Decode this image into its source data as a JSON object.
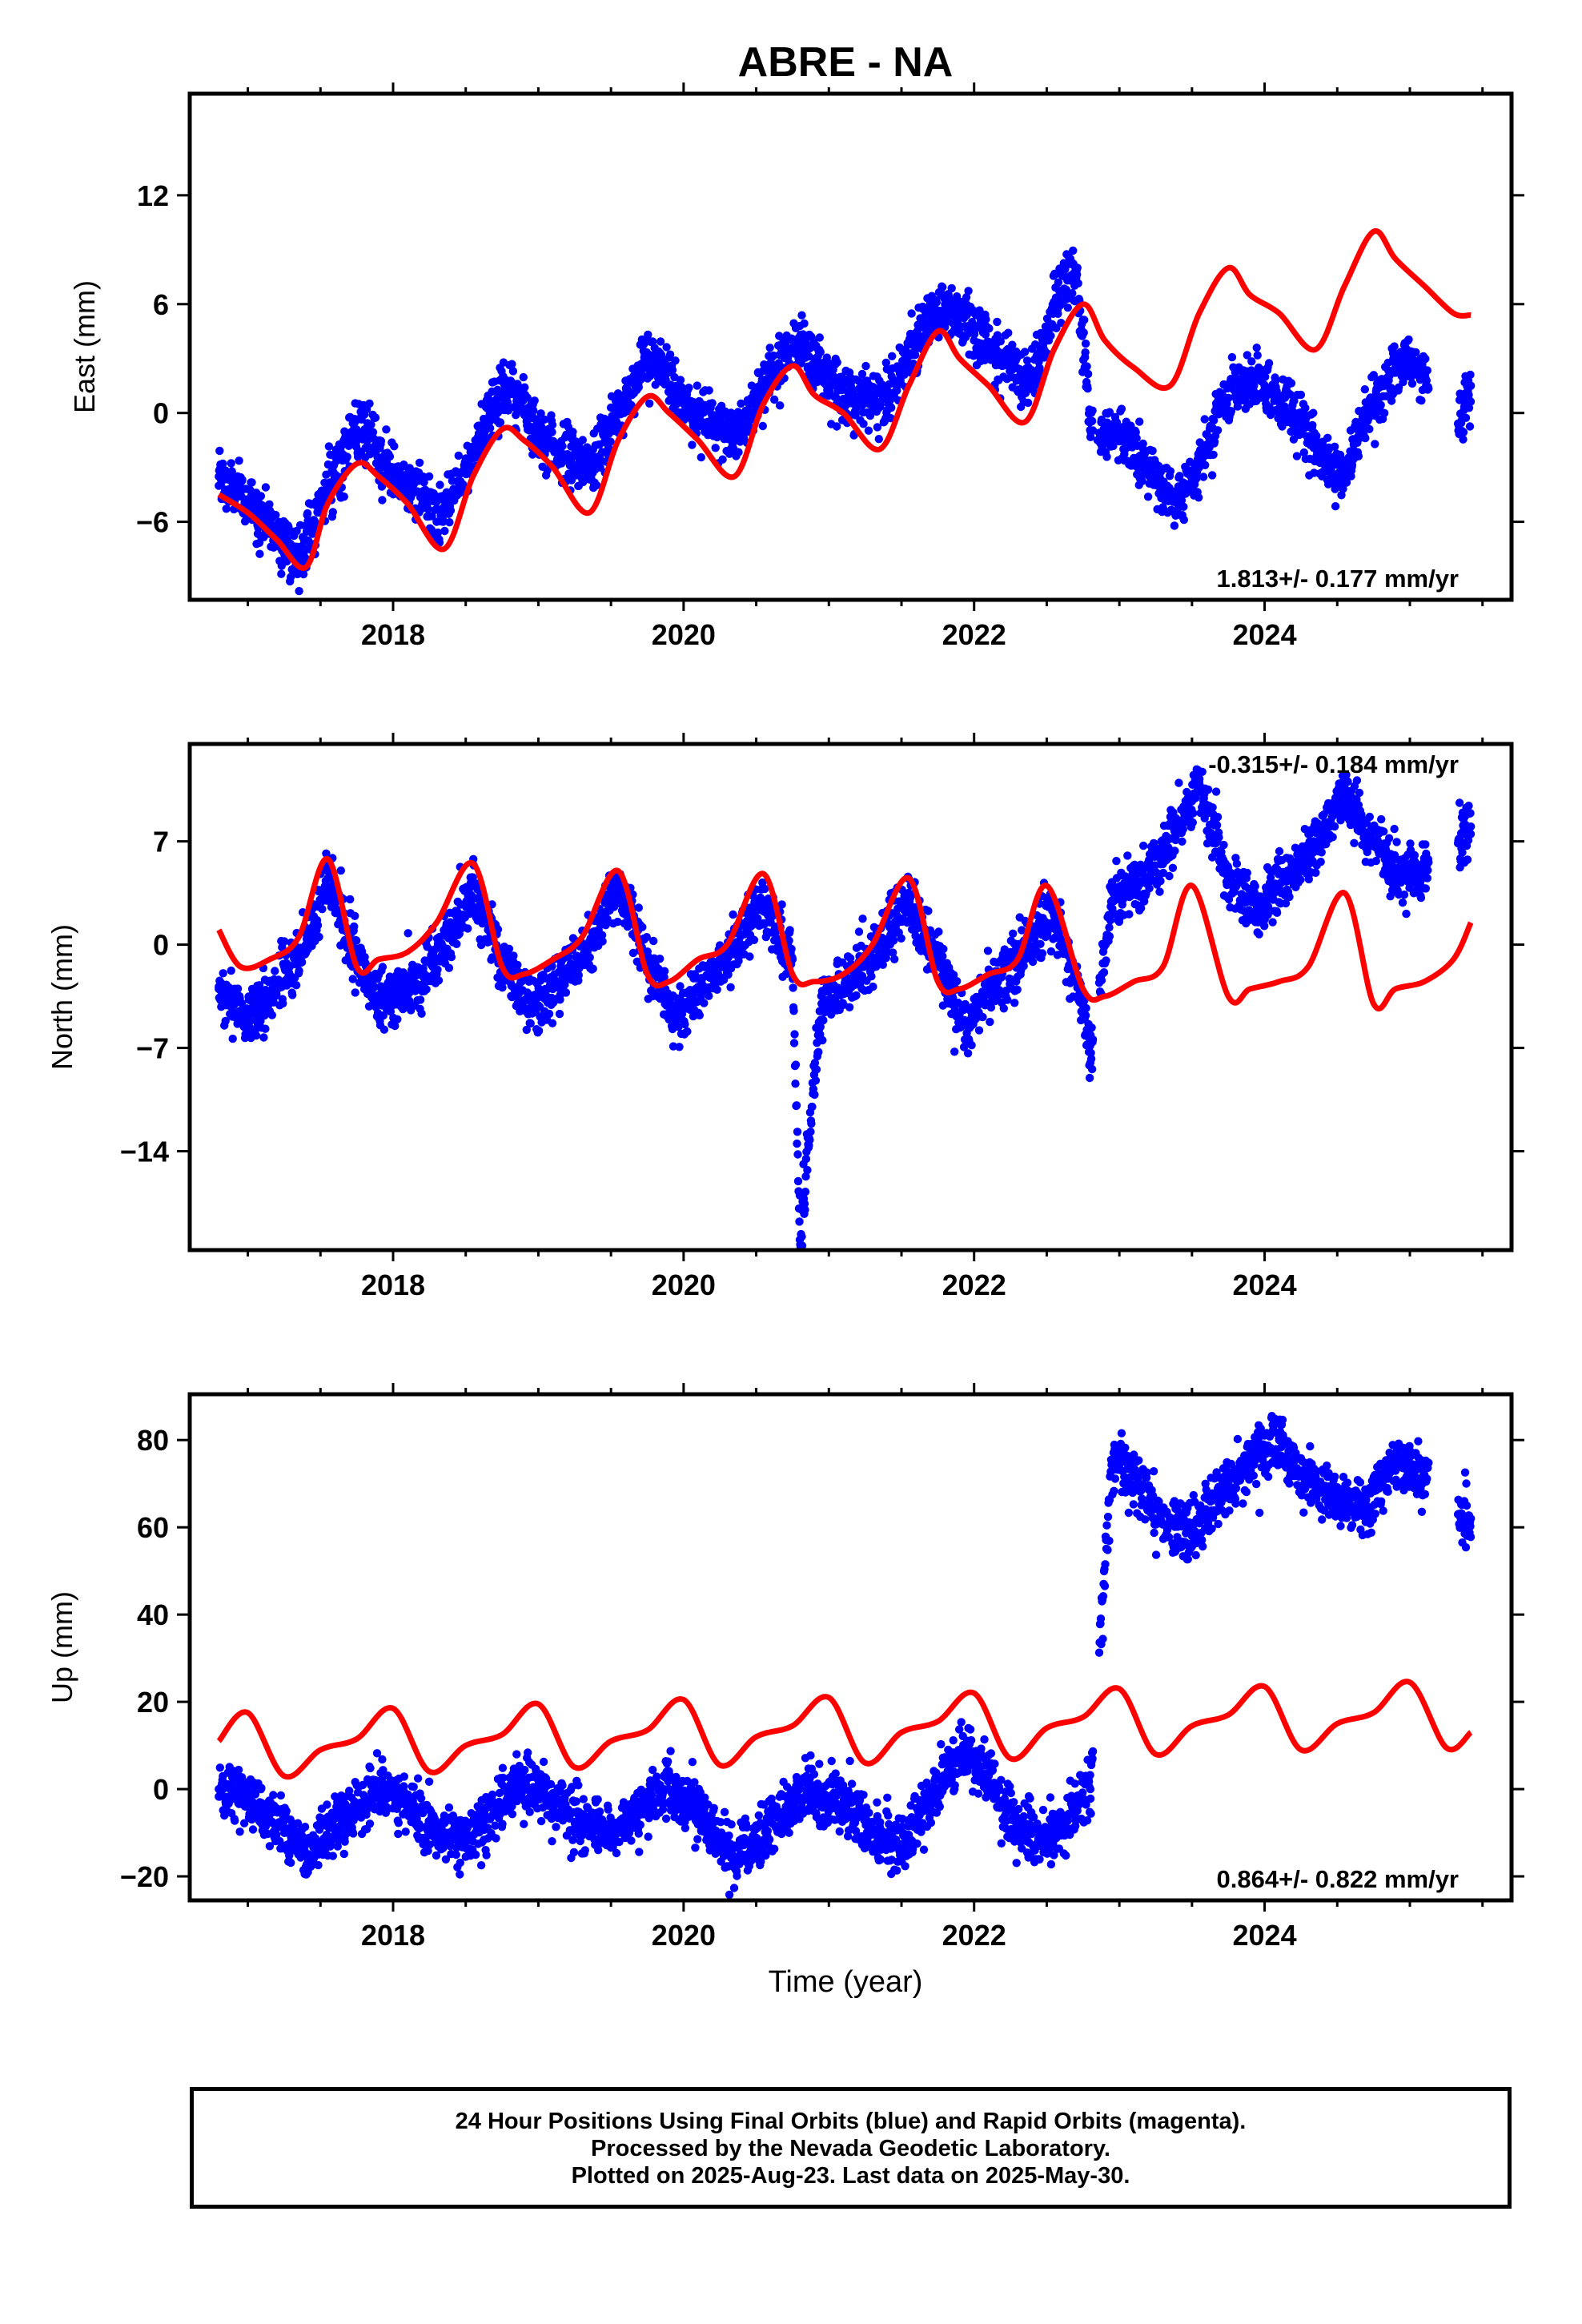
{
  "title": "ABRE - NA",
  "xlabel": "Time (year)",
  "caption": [
    "24 Hour Positions Using Final Orbits (blue) and Rapid Orbits (magenta).",
    "Processed by the Nevada Geodetic Laboratory.",
    "Plotted on 2025-Aug-23. Last data on 2025-May-30."
  ],
  "colors": {
    "data": "#0000ff",
    "model": "#ff0000",
    "axes": "#000000"
  },
  "chart_data": [
    {
      "type": "scatter",
      "panel": "east",
      "ylabel": "East (mm)",
      "xlim": [
        2016.6,
        2025.7
      ],
      "ylim": [
        -10.3,
        17.6
      ],
      "x_ticks": [
        2018,
        2020,
        2022,
        2024
      ],
      "y_ticks": [
        -6,
        0,
        6,
        12
      ],
      "y_tick_labels": [
        "−6",
        "0",
        "6",
        "12"
      ],
      "annotation": "1.813+/- 0.177 mm/yr",
      "annotation_position": "bottom-right",
      "series": [
        {
          "role": "data",
          "x": [
            2016.8,
            2017.0,
            2017.2,
            2017.35,
            2017.5,
            2017.7,
            2017.8,
            2018.0,
            2018.2,
            2018.3,
            2018.5,
            2018.7,
            2018.8,
            2019.0,
            2019.2,
            2019.35,
            2019.5,
            2019.7,
            2019.8,
            2020.0,
            2020.2,
            2020.35,
            2020.5,
            2020.7,
            2020.8,
            2021.0,
            2021.2,
            2021.35,
            2021.5,
            2021.7,
            2021.8,
            2022.0,
            2022.2,
            2022.4,
            2022.55,
            2022.7,
            2022.8,
            2022.85,
            2023.0,
            2023.2,
            2023.4,
            2023.55,
            2023.7,
            2023.9,
            2024.0,
            2024.2,
            2024.4,
            2024.55,
            2024.7,
            2024.9,
            2025.0,
            2025.1,
            2025.35,
            2025.42
          ],
          "y": [
            -3.5,
            -5.0,
            -6.5,
            -8.0,
            -5.0,
            -1.5,
            -1.0,
            -3.5,
            -4.5,
            -6.0,
            -3.0,
            0.5,
            1.5,
            -1.0,
            -2.5,
            -3.0,
            -1.0,
            2.5,
            3.0,
            0.5,
            -0.5,
            -1.5,
            1.0,
            3.5,
            4.0,
            2.0,
            0.5,
            0.5,
            2.5,
            5.5,
            6.0,
            4.5,
            3.0,
            1.5,
            6.0,
            8.0,
            -0.5,
            -1.5,
            -1.0,
            -3.0,
            -5.0,
            -3.0,
            0.5,
            2.0,
            1.5,
            0.0,
            -2.5,
            -3.5,
            0.0,
            2.5,
            3.0,
            2.0,
            -0.5,
            1.5
          ]
        },
        {
          "role": "model",
          "x": [
            2016.8,
            2017.0,
            2017.2,
            2017.4,
            2017.55,
            2017.75,
            2017.9,
            2018.1,
            2018.35,
            2018.55,
            2018.75,
            2018.9,
            2019.1,
            2019.35,
            2019.55,
            2019.75,
            2019.9,
            2020.1,
            2020.35,
            2020.55,
            2020.75,
            2020.9,
            2021.1,
            2021.35,
            2021.55,
            2021.75,
            2021.9,
            2022.1,
            2022.35,
            2022.55,
            2022.75,
            2022.9,
            2023.1,
            2023.35,
            2023.55,
            2023.75,
            2023.9,
            2024.1,
            2024.35,
            2024.55,
            2024.75,
            2024.9,
            2025.1,
            2025.3,
            2025.42
          ],
          "y": [
            -4.5,
            -5.5,
            -7.0,
            -8.5,
            -5.0,
            -2.8,
            -3.5,
            -5.0,
            -7.5,
            -3.5,
            -0.9,
            -1.5,
            -3.0,
            -5.5,
            -1.5,
            0.9,
            0.0,
            -1.5,
            -3.5,
            0.5,
            2.6,
            1.0,
            0.0,
            -2.0,
            1.5,
            4.5,
            3.0,
            1.5,
            -0.5,
            3.5,
            6.0,
            4.0,
            2.5,
            1.5,
            5.5,
            8.0,
            6.5,
            5.5,
            3.5,
            7.0,
            10.0,
            8.5,
            7.0,
            5.5,
            5.4
          ]
        }
      ]
    },
    {
      "type": "scatter",
      "panel": "north",
      "ylabel": "North (mm)",
      "xlim": [
        2016.6,
        2025.7
      ],
      "ylim": [
        -20.7,
        13.6
      ],
      "x_ticks": [
        2018,
        2020,
        2022,
        2024
      ],
      "y_ticks": [
        -14,
        -7,
        0,
        7
      ],
      "y_tick_labels": [
        "−14",
        "−7",
        "0",
        "7"
      ],
      "annotation": "-0.315+/- 0.184 mm/yr",
      "annotation_position": "top-right",
      "series": [
        {
          "role": "data",
          "x": [
            2016.8,
            2017.0,
            2017.2,
            2017.4,
            2017.55,
            2017.75,
            2017.9,
            2018.1,
            2018.3,
            2018.55,
            2018.75,
            2018.95,
            2019.1,
            2019.3,
            2019.55,
            2019.75,
            2019.95,
            2020.1,
            2020.3,
            2020.55,
            2020.75,
            2020.8,
            2020.95,
            2021.1,
            2021.3,
            2021.55,
            2021.75,
            2021.95,
            2022.1,
            2022.3,
            2022.55,
            2022.75,
            2022.8,
            2022.95,
            2023.1,
            2023.3,
            2023.55,
            2023.75,
            2023.95,
            2024.1,
            2024.3,
            2024.55,
            2024.75,
            2024.95,
            2025.1,
            2025.35,
            2025.42
          ],
          "y": [
            -3.0,
            -5.0,
            -3.0,
            0.0,
            4.5,
            -1.0,
            -4.0,
            -3.0,
            -1.0,
            4.0,
            -1.0,
            -4.5,
            -3.0,
            -1.0,
            4.0,
            -1.0,
            -5.0,
            -3.0,
            -1.0,
            3.0,
            -1.0,
            -20.0,
            -4.0,
            -3.0,
            -1.0,
            3.0,
            -1.0,
            -6.0,
            -3.0,
            -1.0,
            2.0,
            -4.0,
            -8.0,
            3.0,
            4.0,
            6.0,
            11.0,
            4.5,
            2.0,
            4.0,
            6.0,
            10.0,
            7.0,
            4.5,
            5.0,
            7.0,
            8.0
          ]
        },
        {
          "role": "model",
          "x": [
            2016.8,
            2016.95,
            2017.15,
            2017.35,
            2017.55,
            2017.75,
            2017.9,
            2018.1,
            2018.3,
            2018.55,
            2018.75,
            2018.9,
            2019.1,
            2019.3,
            2019.55,
            2019.75,
            2019.9,
            2020.1,
            2020.3,
            2020.55,
            2020.75,
            2020.9,
            2021.1,
            2021.3,
            2021.55,
            2021.75,
            2021.9,
            2022.1,
            2022.3,
            2022.5,
            2022.75,
            2022.9,
            2023.1,
            2023.3,
            2023.5,
            2023.75,
            2023.9,
            2024.1,
            2024.3,
            2024.55,
            2024.75,
            2024.9,
            2025.1,
            2025.3,
            2025.42
          ],
          "y": [
            1.0,
            -1.5,
            -1.0,
            0.5,
            5.8,
            -1.5,
            -1.0,
            -0.5,
            1.5,
            5.5,
            -1.5,
            -2.0,
            -1.0,
            0.5,
            5.0,
            -2.0,
            -2.5,
            -1.0,
            0.0,
            4.8,
            -2.0,
            -2.5,
            -2.0,
            0.0,
            4.5,
            -2.5,
            -3.0,
            -2.0,
            -1.0,
            4.0,
            -3.0,
            -3.5,
            -2.5,
            -1.5,
            4.0,
            -3.5,
            -3.0,
            -2.5,
            -1.5,
            3.5,
            -4.0,
            -3.0,
            -2.5,
            -1.0,
            1.5
          ]
        }
      ]
    },
    {
      "type": "scatter",
      "panel": "up",
      "ylabel": "Up (mm)",
      "xlim": [
        2016.6,
        2025.7
      ],
      "ylim": [
        -25.5,
        90.5
      ],
      "x_ticks": [
        2018,
        2020,
        2022,
        2024
      ],
      "y_ticks": [
        -20,
        0,
        20,
        40,
        60,
        80
      ],
      "y_tick_labels": [
        "−20",
        "0",
        "20",
        "40",
        "60",
        "80"
      ],
      "annotation": "0.864+/- 0.822 mm/yr",
      "annotation_position": "bottom-right",
      "series": [
        {
          "role": "data",
          "x": [
            2016.8,
            2017.0,
            2017.2,
            2017.4,
            2017.7,
            2017.9,
            2018.1,
            2018.3,
            2018.5,
            2018.7,
            2018.9,
            2019.1,
            2019.3,
            2019.5,
            2019.7,
            2019.9,
            2020.1,
            2020.3,
            2020.5,
            2020.7,
            2020.9,
            2021.1,
            2021.3,
            2021.5,
            2021.7,
            2021.9,
            2022.1,
            2022.3,
            2022.5,
            2022.7,
            2022.8,
            2022.95,
            2023.1,
            2023.25,
            2023.5,
            2023.7,
            2023.9,
            2024.1,
            2024.25,
            2024.5,
            2024.7,
            2024.9,
            2025.1,
            2025.35,
            2025.42
          ],
          "y": [
            0.0,
            -2.0,
            -8.0,
            -15.0,
            -5.0,
            0.0,
            -3.0,
            -10.0,
            -12.0,
            -5.0,
            2.0,
            -2.0,
            -8.0,
            -10.0,
            -5.0,
            0.0,
            -5.0,
            -15.0,
            -13.0,
            -5.0,
            0.0,
            -3.0,
            -10.0,
            -13.0,
            -2.0,
            8.0,
            3.0,
            -10.0,
            -12.0,
            -5.0,
            0.0,
            75.0,
            72.0,
            62.0,
            58.0,
            68.0,
            75.0,
            80.0,
            72.0,
            66.0,
            65.0,
            75.0,
            72.0,
            62.0,
            62.0
          ]
        },
        {
          "role": "model",
          "x": [
            2016.8,
            2017.0,
            2017.25,
            2017.5,
            2017.75,
            2018.0,
            2018.25,
            2018.5,
            2018.75,
            2019.0,
            2019.25,
            2019.5,
            2019.75,
            2020.0,
            2020.25,
            2020.5,
            2020.75,
            2021.0,
            2021.25,
            2021.5,
            2021.75,
            2022.0,
            2022.25,
            2022.5,
            2022.75,
            2023.0,
            2023.25,
            2023.5,
            2023.75,
            2024.0,
            2024.25,
            2024.5,
            2024.75,
            2025.0,
            2025.25,
            2025.42
          ],
          "y": [
            11.0,
            17.5,
            3.0,
            9.0,
            11.5,
            18.5,
            4.0,
            10.0,
            12.5,
            19.5,
            5.0,
            11.0,
            13.5,
            20.5,
            5.5,
            12.0,
            14.5,
            21.0,
            6.0,
            13.0,
            15.5,
            22.0,
            7.0,
            14.0,
            16.5,
            23.0,
            8.0,
            14.5,
            17.0,
            23.5,
            9.0,
            15.0,
            17.5,
            24.5,
            9.5,
            13.0
          ]
        }
      ]
    }
  ]
}
